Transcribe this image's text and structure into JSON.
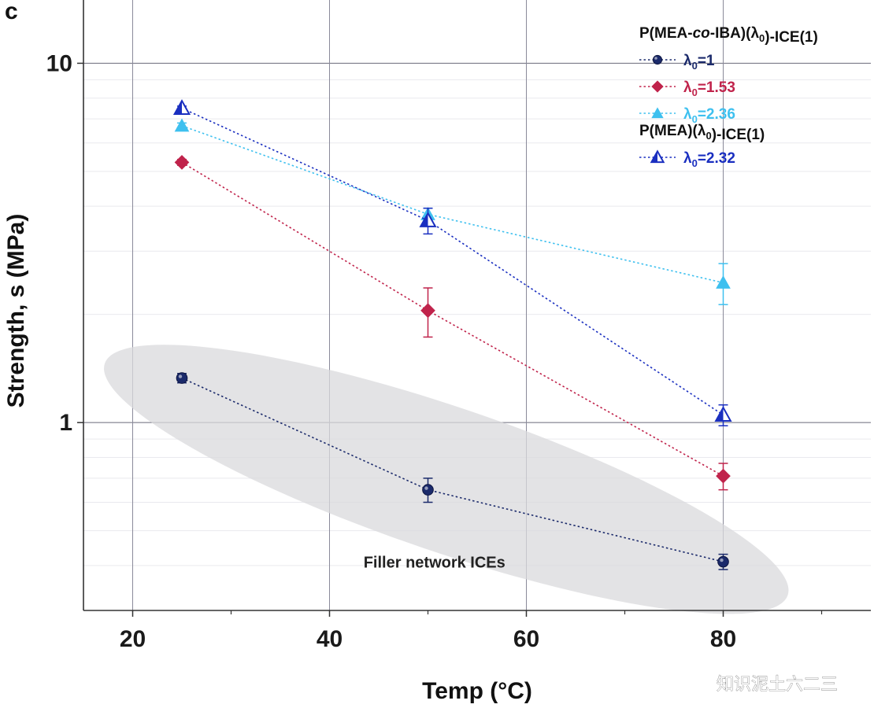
{
  "panel_label": "c",
  "watermark": "知识泥土六二三",
  "chart_data": {
    "type": "scatter",
    "xlabel": "Temp (°C)",
    "ylabel": "Strength, s (MPa)",
    "xlim": [
      15,
      95
    ],
    "ylim": [
      0.3,
      15
    ],
    "yscale": "log",
    "xticks": [
      20,
      40,
      60,
      80
    ],
    "yticks": [
      1,
      10
    ],
    "grid": true,
    "legend_position": "top-right",
    "legend_groups": [
      {
        "title": "P(MEA-co-IBA)(λ0)-ICE(1)",
        "series": [
          0,
          1,
          2
        ]
      },
      {
        "title": "P(MEA)(λ0)-ICE(1)",
        "series": [
          3
        ]
      }
    ],
    "series": [
      {
        "name": "λ0=1",
        "color": "#1b2a6b",
        "marker": "circle",
        "x": [
          25,
          50,
          80
        ],
        "y": [
          1.33,
          0.65,
          0.41
        ],
        "err": [
          0.04,
          0.05,
          0.02
        ]
      },
      {
        "name": "λ0=1.53",
        "color": "#c0234b",
        "marker": "diamond",
        "x": [
          25,
          50,
          80
        ],
        "y": [
          5.3,
          2.05,
          0.71
        ],
        "err": [
          0.1,
          0.32,
          0.06
        ]
      },
      {
        "name": "λ0=2.36",
        "color": "#3ec0ef",
        "marker": "triangle",
        "x": [
          25,
          50,
          80
        ],
        "y": [
          6.7,
          3.8,
          2.45
        ],
        "err": [
          0.12,
          0.15,
          0.32
        ]
      },
      {
        "name": "λ0=2.32",
        "color": "#1a2fc0",
        "marker": "triangle-half",
        "x": [
          25,
          50,
          80
        ],
        "y": [
          7.5,
          3.65,
          1.05
        ],
        "err": [
          0.1,
          0.3,
          0.07
        ]
      }
    ],
    "annotations": [
      {
        "text": "Filler network ICEs",
        "type": "ellipse-highlight",
        "series": 0
      }
    ]
  }
}
